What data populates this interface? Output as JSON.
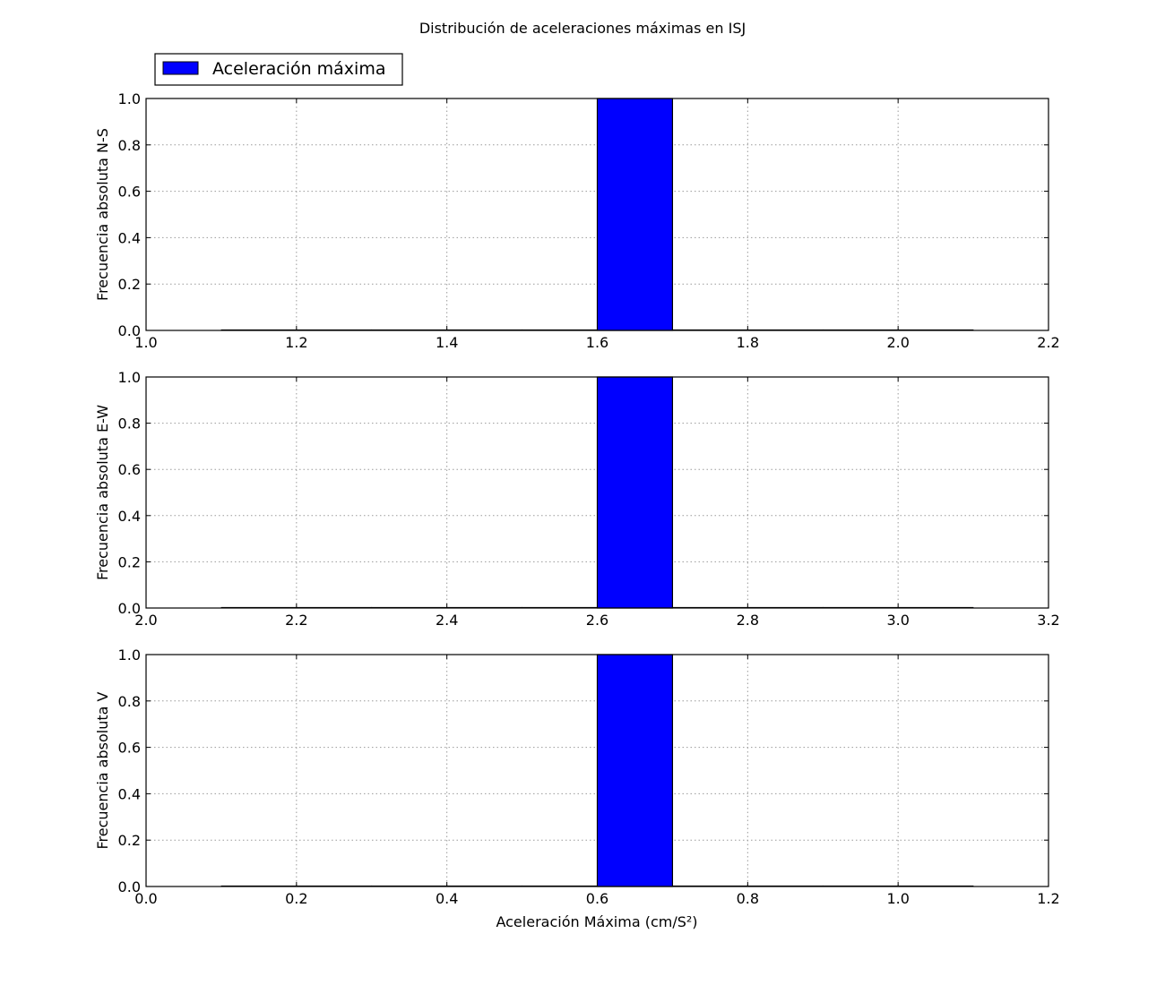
{
  "figure": {
    "title": "Distribución de aceleraciones máximas en ISJ",
    "xlabel": "Aceleración Máxima (cm/S²)",
    "legend": {
      "label": "Aceleración máxima",
      "placement": "upper-left-outside"
    },
    "colors": {
      "bar": "#0000ff",
      "grid": "#9a9a9a"
    }
  },
  "chart_data": [
    {
      "type": "bar",
      "ylabel": "Frecuencia absoluta N-S",
      "xlim": [
        1.0,
        2.2
      ],
      "ylim": [
        0.0,
        1.0
      ],
      "xticks": [
        "1.0",
        "1.2",
        "1.4",
        "1.6",
        "1.8",
        "2.0",
        "2.2"
      ],
      "xtick_values": [
        1.0,
        1.2,
        1.4,
        1.6,
        1.8,
        2.0,
        2.2
      ],
      "yticks": [
        "0.0",
        "0.2",
        "0.4",
        "0.6",
        "0.8",
        "1.0"
      ],
      "ytick_values": [
        0.0,
        0.2,
        0.4,
        0.6,
        0.8,
        1.0
      ],
      "grid": true,
      "series": [
        {
          "name": "Aceleración máxima",
          "bins": [
            [
              1.1,
              1.2
            ],
            [
              1.2,
              1.3
            ],
            [
              1.3,
              1.4
            ],
            [
              1.4,
              1.5
            ],
            [
              1.5,
              1.6
            ],
            [
              1.6,
              1.7
            ],
            [
              1.7,
              1.8
            ],
            [
              1.8,
              1.9
            ],
            [
              1.9,
              2.0
            ],
            [
              2.0,
              2.1
            ]
          ],
          "values": [
            0,
            0,
            0,
            0,
            0,
            1,
            0,
            0,
            0,
            0
          ]
        }
      ]
    },
    {
      "type": "bar",
      "ylabel": "Frecuencia absoluta E-W",
      "xlim": [
        2.0,
        3.2
      ],
      "ylim": [
        0.0,
        1.0
      ],
      "xticks": [
        "2.0",
        "2.2",
        "2.4",
        "2.6",
        "2.8",
        "3.0",
        "3.2"
      ],
      "xtick_values": [
        2.0,
        2.2,
        2.4,
        2.6,
        2.8,
        3.0,
        3.2
      ],
      "yticks": [
        "0.0",
        "0.2",
        "0.4",
        "0.6",
        "0.8",
        "1.0"
      ],
      "ytick_values": [
        0.0,
        0.2,
        0.4,
        0.6,
        0.8,
        1.0
      ],
      "grid": true,
      "series": [
        {
          "name": "Aceleración máxima",
          "bins": [
            [
              2.1,
              2.2
            ],
            [
              2.2,
              2.3
            ],
            [
              2.3,
              2.4
            ],
            [
              2.4,
              2.5
            ],
            [
              2.5,
              2.6
            ],
            [
              2.6,
              2.7
            ],
            [
              2.7,
              2.8
            ],
            [
              2.8,
              2.9
            ],
            [
              2.9,
              3.0
            ],
            [
              3.0,
              3.1
            ]
          ],
          "values": [
            0,
            0,
            0,
            0,
            0,
            1,
            0,
            0,
            0,
            0
          ]
        }
      ]
    },
    {
      "type": "bar",
      "ylabel": "Frecuencia absoluta V",
      "xlim": [
        0.0,
        1.2
      ],
      "ylim": [
        0.0,
        1.0
      ],
      "xticks": [
        "0.0",
        "0.2",
        "0.4",
        "0.6",
        "0.8",
        "1.0",
        "1.2"
      ],
      "xtick_values": [
        0.0,
        0.2,
        0.4,
        0.6,
        0.8,
        1.0,
        1.2
      ],
      "yticks": [
        "0.0",
        "0.2",
        "0.4",
        "0.6",
        "0.8",
        "1.0"
      ],
      "ytick_values": [
        0.0,
        0.2,
        0.4,
        0.6,
        0.8,
        1.0
      ],
      "grid": true,
      "series": [
        {
          "name": "Aceleración máxima",
          "bins": [
            [
              0.1,
              0.2
            ],
            [
              0.2,
              0.3
            ],
            [
              0.3,
              0.4
            ],
            [
              0.4,
              0.5
            ],
            [
              0.5,
              0.6
            ],
            [
              0.6,
              0.7
            ],
            [
              0.7,
              0.8
            ],
            [
              0.8,
              0.9
            ],
            [
              0.9,
              1.0
            ],
            [
              1.0,
              1.1
            ]
          ],
          "values": [
            0,
            0,
            0,
            0,
            0,
            1,
            0,
            0,
            0,
            0
          ]
        }
      ]
    }
  ]
}
